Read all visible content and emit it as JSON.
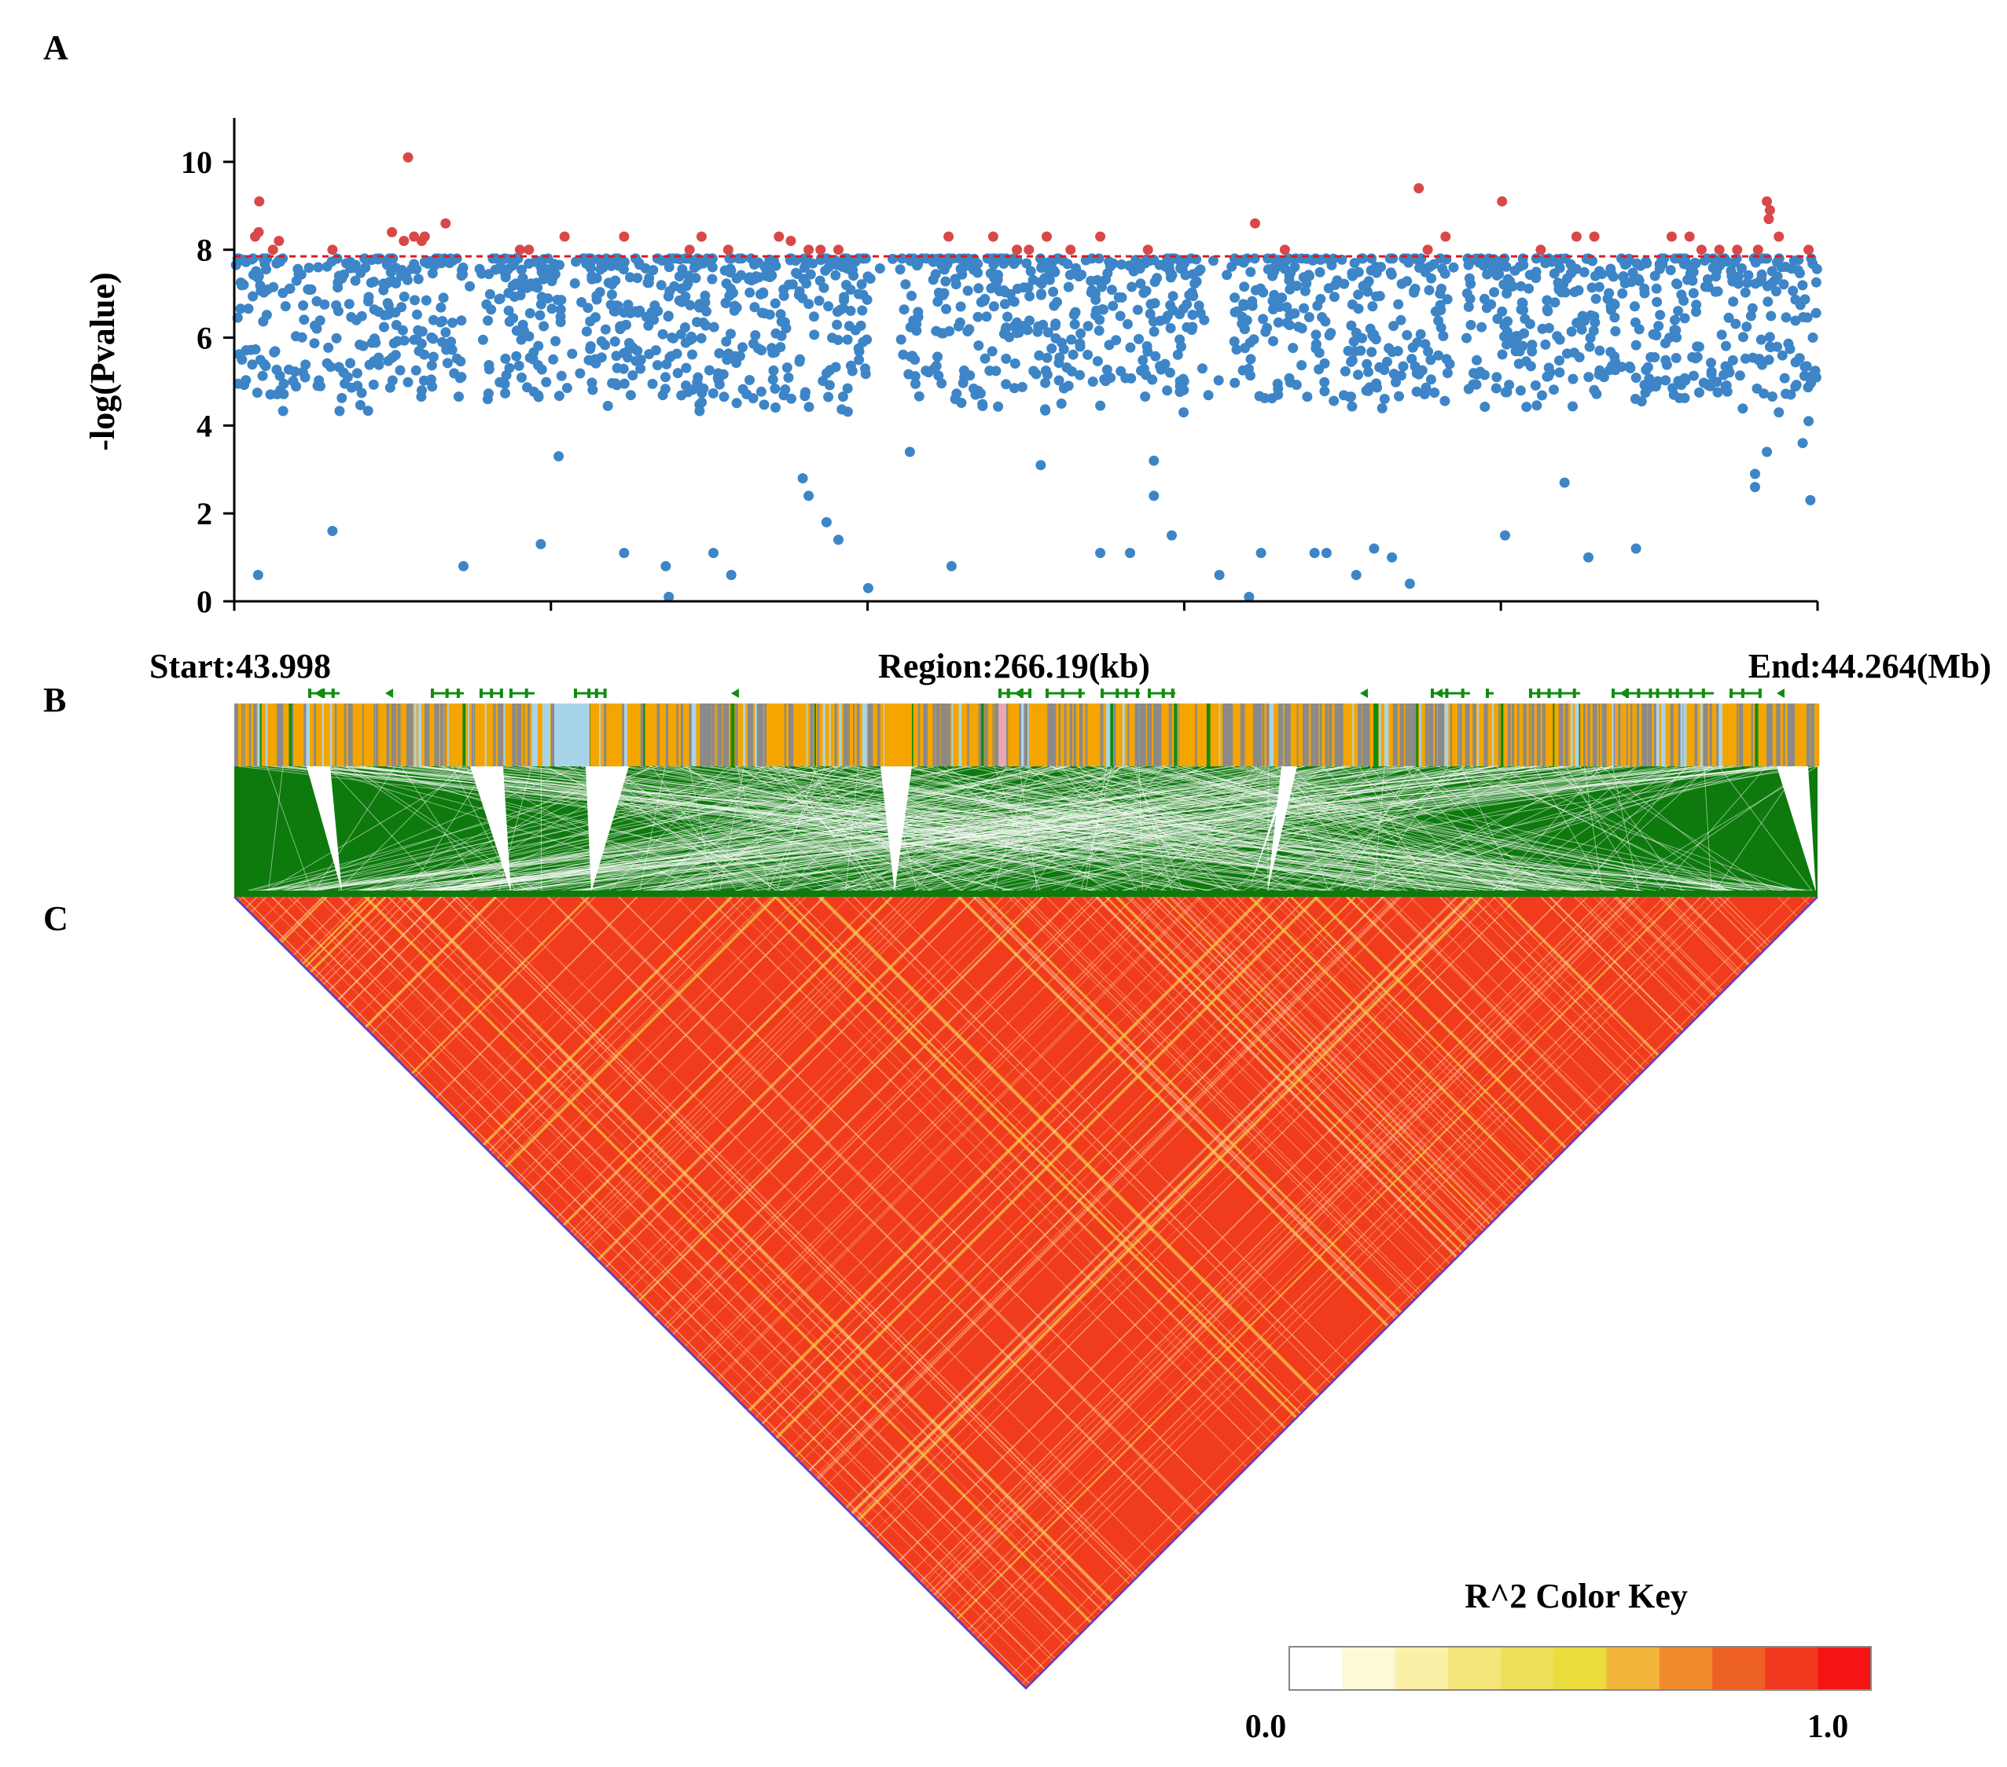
{
  "colors": {
    "point_normal": "#3d85c6",
    "point_significant": "#d94848",
    "threshold_line": "#e0191f",
    "ld_base": "#f03c1c",
    "ld_stripe": "#f6c64a",
    "link_green": "#0e7a0e",
    "gene_green": "#118c11",
    "track_orange": "#f4a500",
    "track_gray": "#8a8a8a",
    "track_lightblue": "#a8d4ea",
    "track_pink": "#e9a6b4",
    "triangle_edge": "#5b3fd0"
  },
  "panels": {
    "a_label": "A",
    "b_label": "B",
    "c_label": "C"
  },
  "region": {
    "start_label": "Start:43.998",
    "region_label": "Region:266.19(kb)",
    "end_label": "End:44.264(Mb)",
    "start_mb": 43.998,
    "end_mb": 44.264,
    "length_kb": 266.19
  },
  "color_key": {
    "title": "R^2 Color Key",
    "min_label": "0.0",
    "max_label": "1.0",
    "colors": [
      "#ffffff",
      "#fdf8d8",
      "#faf0a8",
      "#f4e67a",
      "#eee05a",
      "#e9dc3c",
      "#f2b43a",
      "#f08a2c",
      "#ee6126",
      "#f0391f",
      "#f41414"
    ]
  },
  "chart_data": {
    "type": "scatter",
    "title": "",
    "xlabel": "",
    "ylabel": "-log(Pvalue)",
    "xlim": [
      43.998,
      44.264
    ],
    "ylim": [
      0,
      11
    ],
    "yticks": [
      0,
      2,
      4,
      6,
      8,
      10
    ],
    "ytick_labels": [
      "0",
      "2",
      "4",
      "6",
      "8",
      "10"
    ],
    "threshold": 7.85,
    "grid": false,
    "legend": "none",
    "n_points_approx": 1800,
    "series": [
      {
        "name": "significant",
        "points": [
          [
            44.0015,
            8.3
          ],
          [
            44.0022,
            9.1
          ],
          [
            44.0021,
            8.4
          ],
          [
            44.0055,
            8.2
          ],
          [
            44.0045,
            8.0
          ],
          [
            44.0145,
            8.0
          ],
          [
            44.0245,
            8.4
          ],
          [
            44.0265,
            8.2
          ],
          [
            44.0272,
            10.1
          ],
          [
            44.0282,
            8.3
          ],
          [
            44.0295,
            8.2
          ],
          [
            44.03,
            8.3
          ],
          [
            44.0335,
            8.6
          ],
          [
            44.046,
            8.0
          ],
          [
            44.0475,
            8.0
          ],
          [
            44.0535,
            8.3
          ],
          [
            44.0635,
            8.3
          ],
          [
            44.0745,
            8.0
          ],
          [
            44.0765,
            8.3
          ],
          [
            44.081,
            8.0
          ],
          [
            44.0895,
            8.3
          ],
          [
            44.0915,
            8.2
          ],
          [
            44.0945,
            8.0
          ],
          [
            44.0965,
            8.0
          ],
          [
            44.0995,
            8.0
          ],
          [
            44.118,
            8.3
          ],
          [
            44.1255,
            8.3
          ],
          [
            44.1295,
            8.0
          ],
          [
            44.1315,
            8.0
          ],
          [
            44.1345,
            8.3
          ],
          [
            44.1385,
            8.0
          ],
          [
            44.1435,
            8.3
          ],
          [
            44.1515,
            8.0
          ],
          [
            44.1695,
            8.6
          ],
          [
            44.1745,
            8.0
          ],
          [
            44.197,
            9.4
          ],
          [
            44.1985,
            8.0
          ],
          [
            44.2015,
            8.3
          ],
          [
            44.211,
            9.1
          ],
          [
            44.2175,
            8.0
          ],
          [
            44.2235,
            8.3
          ],
          [
            44.2265,
            8.3
          ],
          [
            44.2395,
            8.3
          ],
          [
            44.2425,
            8.3
          ],
          [
            44.2445,
            8.0
          ],
          [
            44.2475,
            8.0
          ],
          [
            44.2505,
            8.0
          ],
          [
            44.254,
            8.0
          ],
          [
            44.2555,
            9.1
          ],
          [
            44.256,
            8.9
          ],
          [
            44.2558,
            8.7
          ],
          [
            44.2575,
            8.3
          ],
          [
            44.2625,
            8.0
          ]
        ]
      },
      {
        "name": "non-significant (low outliers)",
        "points": [
          [
            44.002,
            0.6
          ],
          [
            44.0145,
            1.6
          ],
          [
            44.0365,
            0.8
          ],
          [
            44.0495,
            1.3
          ],
          [
            44.0525,
            3.3
          ],
          [
            44.0635,
            1.1
          ],
          [
            44.0705,
            0.8
          ],
          [
            44.071,
            0.1
          ],
          [
            44.0785,
            1.1
          ],
          [
            44.0815,
            0.6
          ],
          [
            44.0935,
            2.8
          ],
          [
            44.0945,
            2.4
          ],
          [
            44.0975,
            1.8
          ],
          [
            44.0995,
            1.4
          ],
          [
            44.1045,
            0.3
          ],
          [
            44.1115,
            3.4
          ],
          [
            44.1185,
            0.8
          ],
          [
            44.1335,
            3.1
          ],
          [
            44.1435,
            1.1
          ],
          [
            44.1485,
            1.1
          ],
          [
            44.1525,
            3.2
          ],
          [
            44.1525,
            2.4
          ],
          [
            44.1555,
            1.5
          ],
          [
            44.1575,
            4.3
          ],
          [
            44.1635,
            0.6
          ],
          [
            44.1685,
            0.1
          ],
          [
            44.1705,
            1.1
          ],
          [
            44.1795,
            1.1
          ],
          [
            44.1815,
            1.1
          ],
          [
            44.1865,
            0.6
          ],
          [
            44.1895,
            1.2
          ],
          [
            44.1925,
            1.0
          ],
          [
            44.1955,
            0.4
          ],
          [
            44.2115,
            1.5
          ],
          [
            44.2215,
            2.7
          ],
          [
            44.2255,
            1.0
          ],
          [
            44.2335,
            1.2
          ],
          [
            44.2535,
            2.9
          ],
          [
            44.2535,
            2.6
          ],
          [
            44.2555,
            3.4
          ],
          [
            44.2575,
            4.3
          ],
          [
            44.2615,
            3.6
          ],
          [
            44.2625,
            4.1
          ],
          [
            44.2628,
            2.3
          ]
        ]
      }
    ]
  }
}
